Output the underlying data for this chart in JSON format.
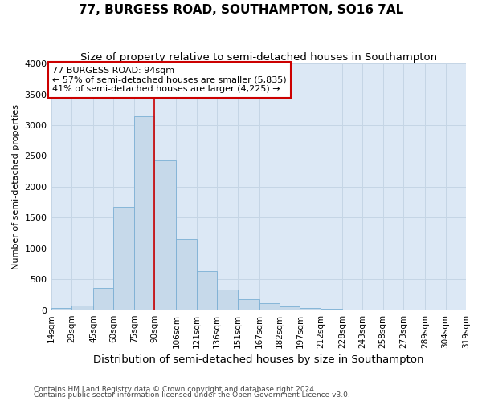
{
  "title": "77, BURGESS ROAD, SOUTHAMPTON, SO16 7AL",
  "subtitle": "Size of property relative to semi-detached houses in Southampton",
  "xlabel": "Distribution of semi-detached houses by size in Southampton",
  "ylabel": "Number of semi-detached properties",
  "footnote1": "Contains HM Land Registry data © Crown copyright and database right 2024.",
  "footnote2": "Contains public sector information licensed under the Open Government Licence v3.0.",
  "annotation_title": "77 BURGESS ROAD: 94sqm",
  "annotation_line1": "← 57% of semi-detached houses are smaller (5,835)",
  "annotation_line2": "41% of semi-detached houses are larger (4,225) →",
  "property_size": 94,
  "vline_x": 90,
  "bar_left_edges": [
    14,
    29,
    45,
    60,
    75,
    90,
    106,
    121,
    136,
    151,
    167,
    182,
    197,
    212,
    228,
    243,
    258,
    273,
    289,
    304
  ],
  "bar_widths": [
    15,
    16,
    15,
    15,
    15,
    16,
    15,
    15,
    15,
    16,
    15,
    15,
    15,
    16,
    15,
    15,
    15,
    16,
    15,
    15
  ],
  "bar_heights": [
    30,
    80,
    360,
    1680,
    3150,
    2430,
    1160,
    630,
    340,
    175,
    110,
    60,
    40,
    20,
    12,
    7,
    3,
    2,
    1,
    0
  ],
  "tick_labels": [
    "14sqm",
    "29sqm",
    "45sqm",
    "60sqm",
    "75sqm",
    "90sqm",
    "106sqm",
    "121sqm",
    "136sqm",
    "151sqm",
    "167sqm",
    "182sqm",
    "197sqm",
    "212sqm",
    "228sqm",
    "243sqm",
    "258sqm",
    "273sqm",
    "289sqm",
    "304sqm",
    "319sqm"
  ],
  "ylim": [
    0,
    4000
  ],
  "yticks": [
    0,
    500,
    1000,
    1500,
    2000,
    2500,
    3000,
    3500,
    4000
  ],
  "bar_color": "#c6d9ea",
  "bar_edge_color": "#7bafd4",
  "highlight_bar_edge_color": "#cc0000",
  "vline_color": "#cc0000",
  "annotation_box_edge_color": "#cc0000",
  "annotation_box_face_color": "#ffffff",
  "grid_color": "#c5d5e5",
  "background_color": "#ffffff",
  "plot_bg_color": "#dce8f5",
  "title_fontsize": 11,
  "subtitle_fontsize": 9.5,
  "xlabel_fontsize": 9.5,
  "ylabel_fontsize": 8,
  "tick_fontsize": 7.5,
  "ytick_fontsize": 8,
  "annotation_fontsize": 8,
  "footnote_fontsize": 6.5
}
